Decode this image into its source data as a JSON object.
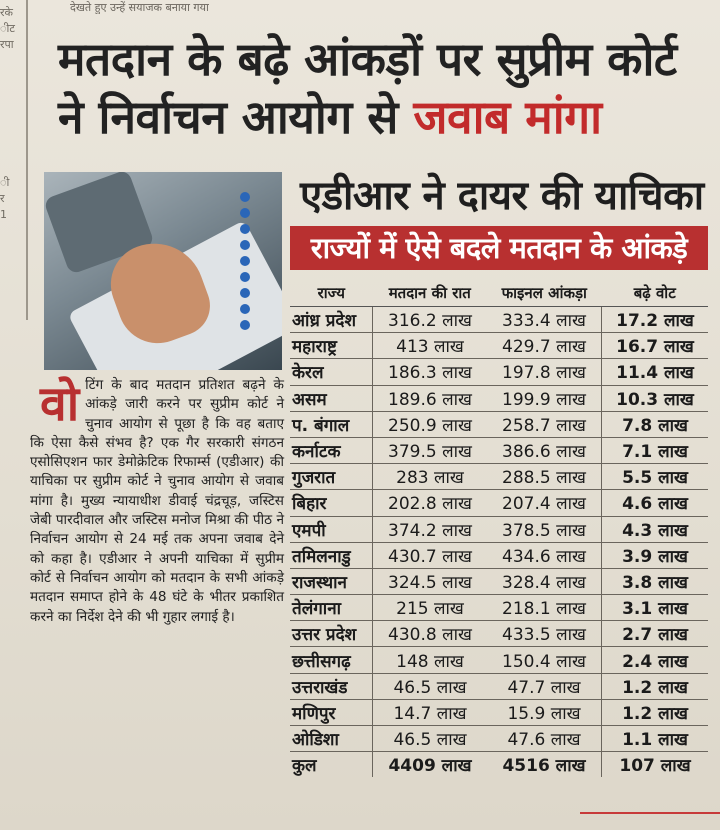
{
  "top_strip": "देखते हुए उन्हें सयाजक बनाया गया",
  "left_column_fragments": [
    "रके",
    "ीट",
    "रपा",
    "ी",
    "र",
    "1"
  ],
  "headline": {
    "line1": "मतदान के बढ़े आंकड़ों पर सुप्रीम कोर्ट",
    "line2_black": "ने निर्वाचन आयोग से",
    "line2_red": "जवाब मांगा"
  },
  "subheadline": "एडीआर ने दायर की याचिका",
  "table_banner": "राज्यों में ऐसे बदले मतदान के आंकड़े",
  "table": {
    "headers": [
      "राज्य",
      "मतदान की रात",
      "फाइनल आंकड़ा",
      "बढ़े वोट"
    ],
    "rows": [
      [
        "आंध्र प्रदेश",
        "316.2 लाख",
        "333.4 लाख",
        "17.2 लाख"
      ],
      [
        "महाराष्ट्र",
        "413 लाख",
        "429.7 लाख",
        "16.7 लाख"
      ],
      [
        "केरल",
        "186.3 लाख",
        "197.8 लाख",
        "11.4 लाख"
      ],
      [
        "असम",
        "189.6 लाख",
        "199.9 लाख",
        "10.3 लाख"
      ],
      [
        "प. बंगाल",
        "250.9 लाख",
        "258.7 लाख",
        "7.8 लाख"
      ],
      [
        "कर्नाटक",
        "379.5 लाख",
        "386.6 लाख",
        "7.1 लाख"
      ],
      [
        "गुजरात",
        "283 लाख",
        "288.5 लाख",
        "5.5 लाख"
      ],
      [
        "बिहार",
        "202.8 लाख",
        "207.4 लाख",
        "4.6 लाख"
      ],
      [
        "एमपी",
        "374.2 लाख",
        "378.5 लाख",
        "4.3 लाख"
      ],
      [
        "तमिलनाडु",
        "430.7 लाख",
        "434.6 लाख",
        "3.9 लाख"
      ],
      [
        "राजस्थान",
        "324.5 लाख",
        "328.4 लाख",
        "3.8 लाख"
      ],
      [
        "तेलंगाना",
        "215 लाख",
        "218.1 लाख",
        "3.1 लाख"
      ],
      [
        "उत्तर प्रदेश",
        "430.8 लाख",
        "433.5 लाख",
        "2.7 लाख"
      ],
      [
        "छत्तीसगढ़",
        "148 लाख",
        "150.4 लाख",
        "2.4 लाख"
      ],
      [
        "उत्तराखंड",
        "46.5 लाख",
        "47.7 लाख",
        "1.2 लाख"
      ],
      [
        "मणिपुर",
        "14.7 लाख",
        "15.9 लाख",
        "1.2 लाख"
      ],
      [
        "ओडिशा",
        "46.5 लाख",
        "47.6 लाख",
        "1.1 लाख"
      ]
    ],
    "total": [
      "कुल",
      "4409 लाख",
      "4516 लाख",
      "107 लाख"
    ]
  },
  "article": {
    "dropcap": "वो",
    "text": "टिंग के बाद मतदान प्रतिशत बढ़ने के आंकड़े जारी करने पर सुप्रीम कोर्ट ने चुनाव आयोग से पूछा है कि वह बताए कि ऐसा कैसे संभव है? एक गैर सरकारी संगठन एसोसिएशन फार डेमोक्रेटिक रिफार्म्स (एडीआर) की याचिका पर सुप्रीम कोर्ट ने चुनाव आयोग से जवाब मांगा है। मुख्य न्यायाधीश डीवाई चंद्रचूड़, जस्टिस जेबी पारदीवाल और जस्टिस मनोज मिश्रा की पीठ ने निर्वाचन आयोग से 24 मई तक अपना जवाब देने को कहा है। एडीआर ने अपनी याचिका में सुप्रीम कोर्ट से निर्वाचन आयोग को मतदान के सभी आंकड़े मतदान समाप्त होने के 48 घंटे के भीतर प्रकाशित करने का निर्देश देने की भी गुहार लगाई है।"
  },
  "colors": {
    "accent_red": "#b83030",
    "paper": "#e6e1d6"
  }
}
